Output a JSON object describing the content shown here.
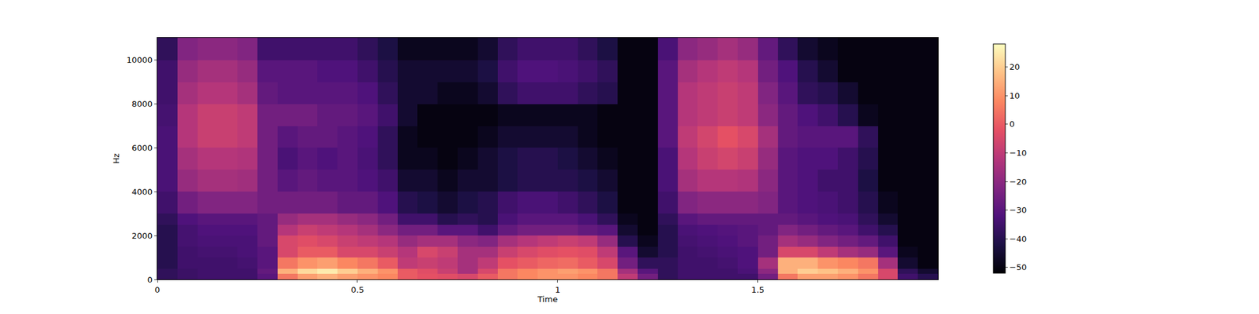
{
  "chart_data": {
    "type": "heatmap",
    "xlabel": "Time",
    "ylabel": "Hz",
    "x_edges": [
      0,
      0.05,
      0.1,
      0.15,
      0.2,
      0.25,
      0.3,
      0.35,
      0.4,
      0.45,
      0.5,
      0.55,
      0.6,
      0.65,
      0.7,
      0.75,
      0.8,
      0.85,
      0.9,
      0.95,
      1,
      1.05,
      1.1,
      1.15,
      1.2,
      1.25,
      1.3,
      1.35,
      1.4,
      1.45,
      1.5,
      1.55,
      1.6,
      1.65,
      1.7,
      1.75,
      1.8,
      1.85,
      1.9,
      1.95
    ],
    "y_edges": [
      0,
      250,
      500,
      1000,
      1500,
      2000,
      2500,
      3000,
      4000,
      5000,
      6000,
      7000,
      8000,
      9000,
      10000,
      11025
    ],
    "z": [
      [
        -38,
        -36,
        -35,
        -35,
        -35,
        -30,
        5,
        12,
        15,
        12,
        10,
        8,
        0,
        -2,
        -3,
        -5,
        0,
        5,
        8,
        10,
        10,
        8,
        5,
        -10,
        -25,
        -38,
        -35,
        -35,
        -35,
        -35,
        -25,
        5,
        12,
        12,
        10,
        5,
        -5,
        -35,
        -40
      ],
      [
        -38,
        -36,
        -35,
        -35,
        -35,
        -28,
        15,
        22,
        25,
        20,
        15,
        10,
        0,
        -3,
        -8,
        -15,
        -5,
        5,
        8,
        10,
        12,
        10,
        5,
        -15,
        -30,
        -38,
        -35,
        -35,
        -35,
        -33,
        -20,
        15,
        20,
        18,
        15,
        10,
        -5,
        -38,
        -45
      ],
      [
        -40,
        -35,
        -35,
        -35,
        -34,
        -30,
        5,
        10,
        12,
        8,
        5,
        0,
        -10,
        -8,
        -10,
        -15,
        -10,
        -2,
        0,
        2,
        3,
        0,
        -5,
        -25,
        -38,
        -38,
        -35,
        -35,
        -34,
        -32,
        -15,
        15,
        15,
        10,
        8,
        5,
        -15,
        -45,
        -50
      ],
      [
        -40,
        -35,
        -34,
        -34,
        -33,
        -30,
        -5,
        0,
        0,
        -5,
        -5,
        -8,
        -12,
        -5,
        -8,
        -15,
        -15,
        -8,
        -5,
        -3,
        -2,
        -3,
        -10,
        -30,
        -45,
        -40,
        -35,
        -34,
        -33,
        -32,
        -25,
        -5,
        -5,
        -10,
        -15,
        -18,
        -30,
        -48,
        -50
      ],
      [
        -40,
        -34,
        -33,
        -33,
        -33,
        -28,
        -5,
        -3,
        -5,
        -8,
        -10,
        -12,
        -18,
        -15,
        -15,
        -20,
        -22,
        -15,
        -12,
        -10,
        -8,
        -10,
        -18,
        -40,
        -48,
        -40,
        -34,
        -33,
        -32,
        -30,
        -25,
        -15,
        -18,
        -22,
        -25,
        -28,
        -35,
        -50,
        -50
      ],
      [
        -40,
        -34,
        -32,
        -32,
        -32,
        -28,
        -12,
        -8,
        -10,
        -12,
        -15,
        -20,
        -25,
        -25,
        -30,
        -30,
        -35,
        -28,
        -25,
        -25,
        -25,
        -28,
        -30,
        -45,
        -50,
        -40,
        -33,
        -32,
        -31,
        -30,
        -28,
        -22,
        -25,
        -28,
        -30,
        -35,
        -40,
        -50,
        -50
      ],
      [
        -38,
        -32,
        -30,
        -30,
        -30,
        -28,
        -18,
        -15,
        -15,
        -18,
        -20,
        -25,
        -35,
        -35,
        -40,
        -38,
        -40,
        -33,
        -30,
        -30,
        -30,
        -33,
        -38,
        -48,
        -50,
        -38,
        -30,
        -28,
        -28,
        -28,
        -28,
        -28,
        -30,
        -32,
        -33,
        -38,
        -45,
        -50,
        -50
      ],
      [
        -35,
        -25,
        -22,
        -22,
        -22,
        -25,
        -25,
        -25,
        -25,
        -28,
        -28,
        -32,
        -40,
        -42,
        -45,
        -42,
        -40,
        -35,
        -33,
        -33,
        -35,
        -38,
        -42,
        -50,
        -50,
        -35,
        -22,
        -20,
        -20,
        -20,
        -22,
        -30,
        -32,
        -33,
        -35,
        -40,
        -48,
        -50,
        -50
      ],
      [
        -33,
        -18,
        -15,
        -15,
        -16,
        -25,
        -30,
        -28,
        -30,
        -30,
        -32,
        -35,
        -45,
        -45,
        -48,
        -45,
        -45,
        -42,
        -40,
        -40,
        -40,
        -42,
        -45,
        -50,
        -50,
        -33,
        -15,
        -12,
        -12,
        -13,
        -20,
        -30,
        -32,
        -35,
        -35,
        -42,
        -50,
        -50,
        -50
      ],
      [
        -33,
        -15,
        -12,
        -12,
        -13,
        -25,
        -33,
        -30,
        -32,
        -30,
        -33,
        -38,
        -48,
        -48,
        -50,
        -48,
        -45,
        -42,
        -40,
        -40,
        -42,
        -45,
        -48,
        -50,
        -50,
        -33,
        -12,
        -8,
        -6,
        -8,
        -18,
        -30,
        -32,
        -32,
        -35,
        -40,
        -50,
        -50,
        -50
      ],
      [
        -33,
        -12,
        -8,
        -8,
        -10,
        -25,
        -30,
        -28,
        -28,
        -30,
        -32,
        -38,
        -48,
        -50,
        -50,
        -50,
        -48,
        -45,
        -45,
        -45,
        -45,
        -48,
        -50,
        -50,
        -50,
        -30,
        -10,
        -6,
        -2,
        -5,
        -15,
        -28,
        -30,
        -30,
        -30,
        -38,
        -50,
        -50,
        -50
      ],
      [
        -34,
        -12,
        -8,
        -8,
        -10,
        -25,
        -25,
        -25,
        -28,
        -28,
        -30,
        -35,
        -45,
        -50,
        -50,
        -50,
        -50,
        -48,
        -48,
        -48,
        -48,
        -48,
        -50,
        -50,
        -50,
        -30,
        -12,
        -10,
        -8,
        -10,
        -20,
        -28,
        -32,
        -35,
        -40,
        -48,
        -50,
        -50,
        -50
      ],
      [
        -35,
        -15,
        -12,
        -12,
        -15,
        -28,
        -30,
        -30,
        -30,
        -30,
        -32,
        -38,
        -45,
        -45,
        -48,
        -48,
        -45,
        -38,
        -35,
        -35,
        -35,
        -38,
        -40,
        -50,
        -50,
        -30,
        -12,
        -10,
        -8,
        -10,
        -22,
        -30,
        -38,
        -40,
        -45,
        -50,
        -50,
        -50,
        -50
      ],
      [
        -35,
        -18,
        -15,
        -15,
        -18,
        -30,
        -30,
        -30,
        -32,
        -32,
        -35,
        -40,
        -45,
        -45,
        -45,
        -45,
        -42,
        -35,
        -32,
        -32,
        -33,
        -35,
        -38,
        -50,
        -50,
        -30,
        -15,
        -12,
        -10,
        -12,
        -25,
        -32,
        -40,
        -45,
        -50,
        -50,
        -50,
        -50,
        -50
      ],
      [
        -38,
        -22,
        -20,
        -20,
        -22,
        -35,
        -35,
        -35,
        -35,
        -35,
        -38,
        -42,
        -48,
        -48,
        -48,
        -48,
        -45,
        -38,
        -35,
        -35,
        -35,
        -38,
        -42,
        -50,
        -50,
        -33,
        -20,
        -18,
        -15,
        -18,
        -28,
        -38,
        -45,
        -48,
        -50,
        -50,
        -50,
        -50,
        -50
      ]
    ],
    "xlim": [
      0,
      1.95
    ],
    "ylim": [
      0,
      11025
    ],
    "xticks": [
      0,
      0.5,
      1,
      1.5
    ],
    "yticks": [
      0,
      2000,
      4000,
      6000,
      8000,
      10000
    ],
    "colorbar_range": [
      -52,
      28
    ],
    "colorbar_ticks": [
      -50,
      -40,
      -30,
      -20,
      -10,
      0,
      10,
      20
    ]
  }
}
